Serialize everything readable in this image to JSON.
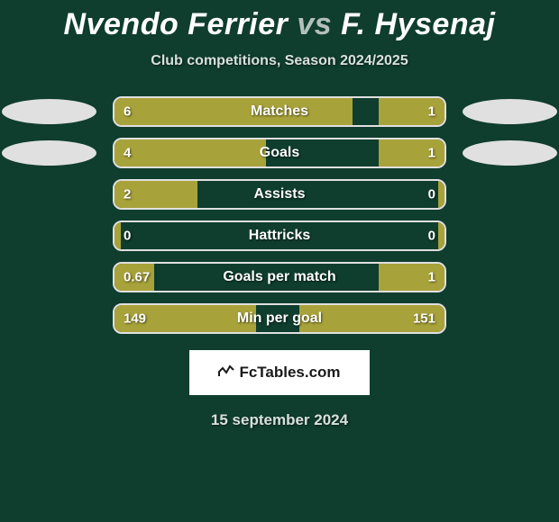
{
  "title": {
    "player1": "Nvendo Ferrier",
    "vs": "vs",
    "player2": "F. Hysenaj"
  },
  "subtitle": "Club competitions, Season 2024/2025",
  "background_color": "#0f3d2e",
  "bar_fill_color": "#a8a23a",
  "bar_border_color": "#e0e0e0",
  "text_color": "#ffffff",
  "subtitle_color": "#d8e0dc",
  "rows": [
    {
      "label": "Matches",
      "left_val": "6",
      "right_val": "1",
      "left_pct": 72,
      "right_pct": 20,
      "show_ovals": true
    },
    {
      "label": "Goals",
      "left_val": "4",
      "right_val": "1",
      "left_pct": 46,
      "right_pct": 20,
      "show_ovals": true
    },
    {
      "label": "Assists",
      "left_val": "2",
      "right_val": "0",
      "left_pct": 25,
      "right_pct": 2,
      "show_ovals": false
    },
    {
      "label": "Hattricks",
      "left_val": "0",
      "right_val": "0",
      "left_pct": 2,
      "right_pct": 2,
      "show_ovals": false
    },
    {
      "label": "Goals per match",
      "left_val": "0.67",
      "right_val": "1",
      "left_pct": 12,
      "right_pct": 20,
      "show_ovals": false
    },
    {
      "label": "Min per goal",
      "left_val": "149",
      "right_val": "151",
      "left_pct": 43,
      "right_pct": 44,
      "show_ovals": false
    }
  ],
  "footer_logo_text": "FcTables.com",
  "footer_date": "15 september 2024"
}
